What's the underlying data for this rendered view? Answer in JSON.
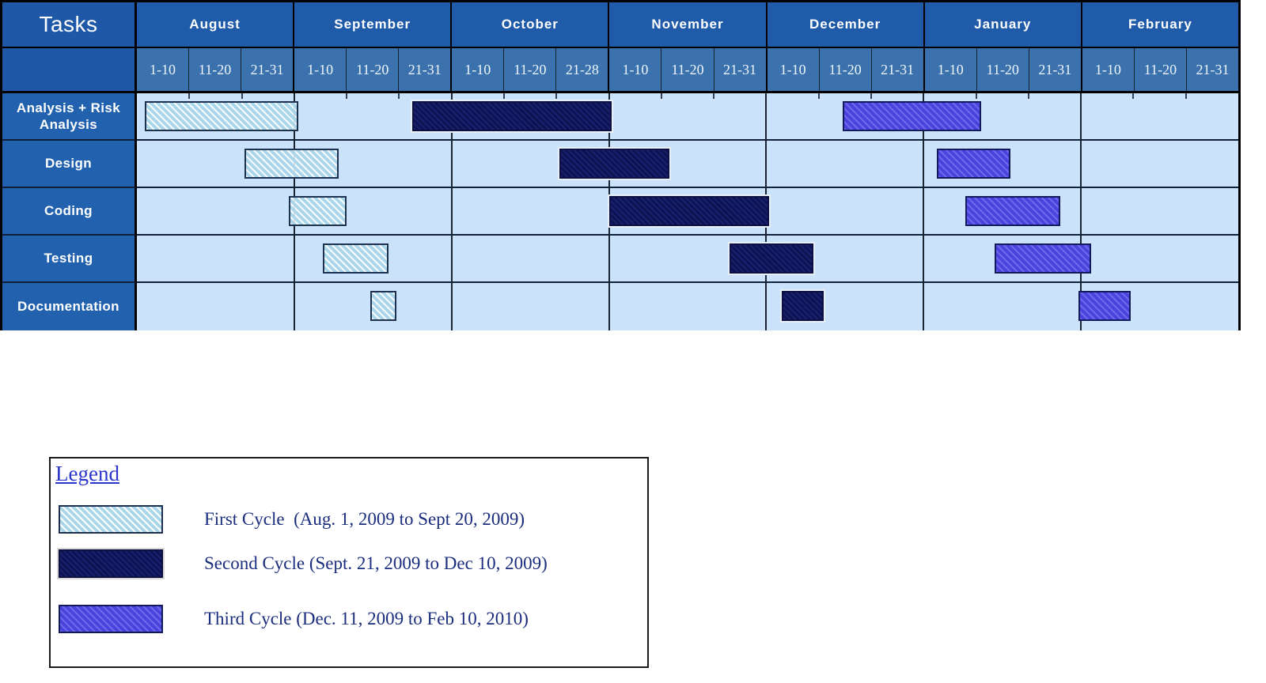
{
  "table": {
    "corner_label": "Tasks",
    "months": [
      {
        "name": "August",
        "periods": [
          "1-10",
          "11-20",
          "21-31"
        ]
      },
      {
        "name": "September",
        "periods": [
          "1-10",
          "11-20",
          "21-31"
        ]
      },
      {
        "name": "October",
        "periods": [
          "1-10",
          "11-20",
          "21-28"
        ]
      },
      {
        "name": "November",
        "periods": [
          "1-10",
          "11-20",
          "21-31"
        ]
      },
      {
        "name": "December",
        "periods": [
          "1-10",
          "11-20",
          "21-31"
        ]
      },
      {
        "name": "January",
        "periods": [
          "1-10",
          "11-20",
          "21-31"
        ]
      },
      {
        "name": "February",
        "periods": [
          "1-10",
          "11-20",
          "21-31"
        ]
      }
    ],
    "tasks": [
      "Analysis + Risk Analysis",
      "Design",
      "Coding",
      "Testing",
      "Documentation"
    ]
  },
  "chart_data": {
    "type": "gantt",
    "title": "",
    "x_axis": "Time (months split into ~10-day periods; unit = 1 period, 3 periods per month, 0 = Aug 1, 2009, 21 = end Feb 2010)",
    "categories_months": [
      "August",
      "September",
      "October",
      "November",
      "December",
      "January",
      "February"
    ],
    "tasks": [
      "Analysis + Risk Analysis",
      "Design",
      "Coding",
      "Testing",
      "Documentation"
    ],
    "cycles": [
      {
        "id": "first",
        "label": "First Cycle",
        "range": "Aug. 1, 2009 to Sept 20, 2009",
        "color": "#a9d7e9"
      },
      {
        "id": "second",
        "label": "Second Cycle",
        "range": "Sept. 21, 2009 to Dec 10, 2009",
        "color": "#0d1352"
      },
      {
        "id": "third",
        "label": "Third Cycle",
        "range": "Dec. 11, 2009 to Feb 10, 2010",
        "color": "#4a42dd"
      }
    ],
    "bars": [
      {
        "task": "Analysis + Risk Analysis",
        "cycle": "first",
        "start": 0.15,
        "end": 3.08
      },
      {
        "task": "Analysis + Risk Analysis",
        "cycle": "second",
        "start": 5.25,
        "end": 9.05
      },
      {
        "task": "Analysis + Risk Analysis",
        "cycle": "third",
        "start": 13.45,
        "end": 16.1
      },
      {
        "task": "Design",
        "cycle": "first",
        "start": 2.05,
        "end": 3.85
      },
      {
        "task": "Design",
        "cycle": "second",
        "start": 8.05,
        "end": 10.15
      },
      {
        "task": "Design",
        "cycle": "third",
        "start": 15.25,
        "end": 16.65
      },
      {
        "task": "Coding",
        "cycle": "first",
        "start": 2.9,
        "end": 4.0
      },
      {
        "task": "Coding",
        "cycle": "second",
        "start": 9.0,
        "end": 12.05
      },
      {
        "task": "Coding",
        "cycle": "third",
        "start": 15.8,
        "end": 17.6
      },
      {
        "task": "Testing",
        "cycle": "first",
        "start": 3.55,
        "end": 4.8
      },
      {
        "task": "Testing",
        "cycle": "second",
        "start": 11.3,
        "end": 12.9
      },
      {
        "task": "Testing",
        "cycle": "third",
        "start": 16.35,
        "end": 18.2
      },
      {
        "task": "Documentation",
        "cycle": "first",
        "start": 4.45,
        "end": 4.95
      },
      {
        "task": "Documentation",
        "cycle": "second",
        "start": 12.3,
        "end": 13.1
      },
      {
        "task": "Documentation",
        "cycle": "third",
        "start": 17.95,
        "end": 18.95
      }
    ],
    "total_units": 21,
    "grid": "month boundary vertical lines, row separator horizontal lines",
    "legend_position": "bottom-left box"
  },
  "legend": {
    "title": "Legend",
    "entries": [
      {
        "cycle": "first",
        "label": "First Cycle  (Aug. 1, 2009 to Sept 20, 2009)"
      },
      {
        "cycle": "second",
        "label": "Second Cycle (Sept. 21, 2009 to Dec 10, 2009)"
      },
      {
        "cycle": "third",
        "label": "Third Cycle (Dec. 11, 2009 to Feb 10, 2010)"
      }
    ]
  },
  "colors": {
    "month_header_bg": "#1f5ba9",
    "period_header_bg": "#3b72ad",
    "task_label_bg": "#2261ae",
    "chart_bg": "#cbe3fa",
    "first_cycle": "#a9d7e9",
    "second_cycle": "#0d1352",
    "third_cycle": "#4a42dd",
    "legend_title_color": "#2a35cc",
    "legend_text_color": "#1b2d7d"
  }
}
